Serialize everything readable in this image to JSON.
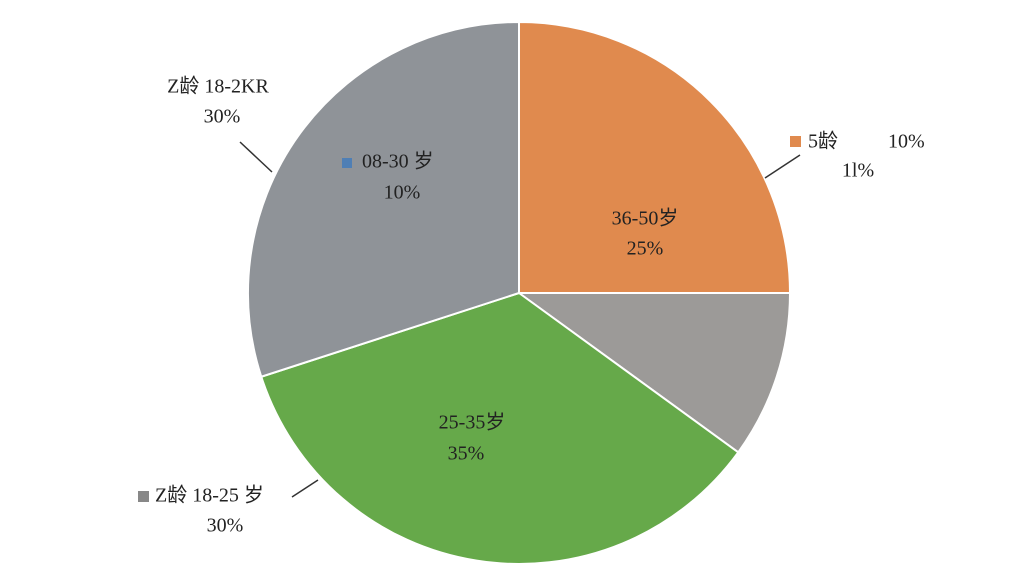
{
  "chart_data": {
    "type": "pie",
    "categories": [
      "36-50岁",
      "5龄",
      "25-35岁",
      "Z龄 18-2KR"
    ],
    "values": [
      25,
      10,
      35,
      30
    ],
    "value_labels": [
      "25%",
      "10%",
      "35%",
      "30%"
    ],
    "colors": [
      "#e08a4e",
      "#9c9a98",
      "#66a94a",
      "#8f9398"
    ],
    "annotations": [
      "08-30 岁",
      "10%",
      "Z龄 18-25 岁",
      "30%",
      "1l%"
    ]
  }
}
